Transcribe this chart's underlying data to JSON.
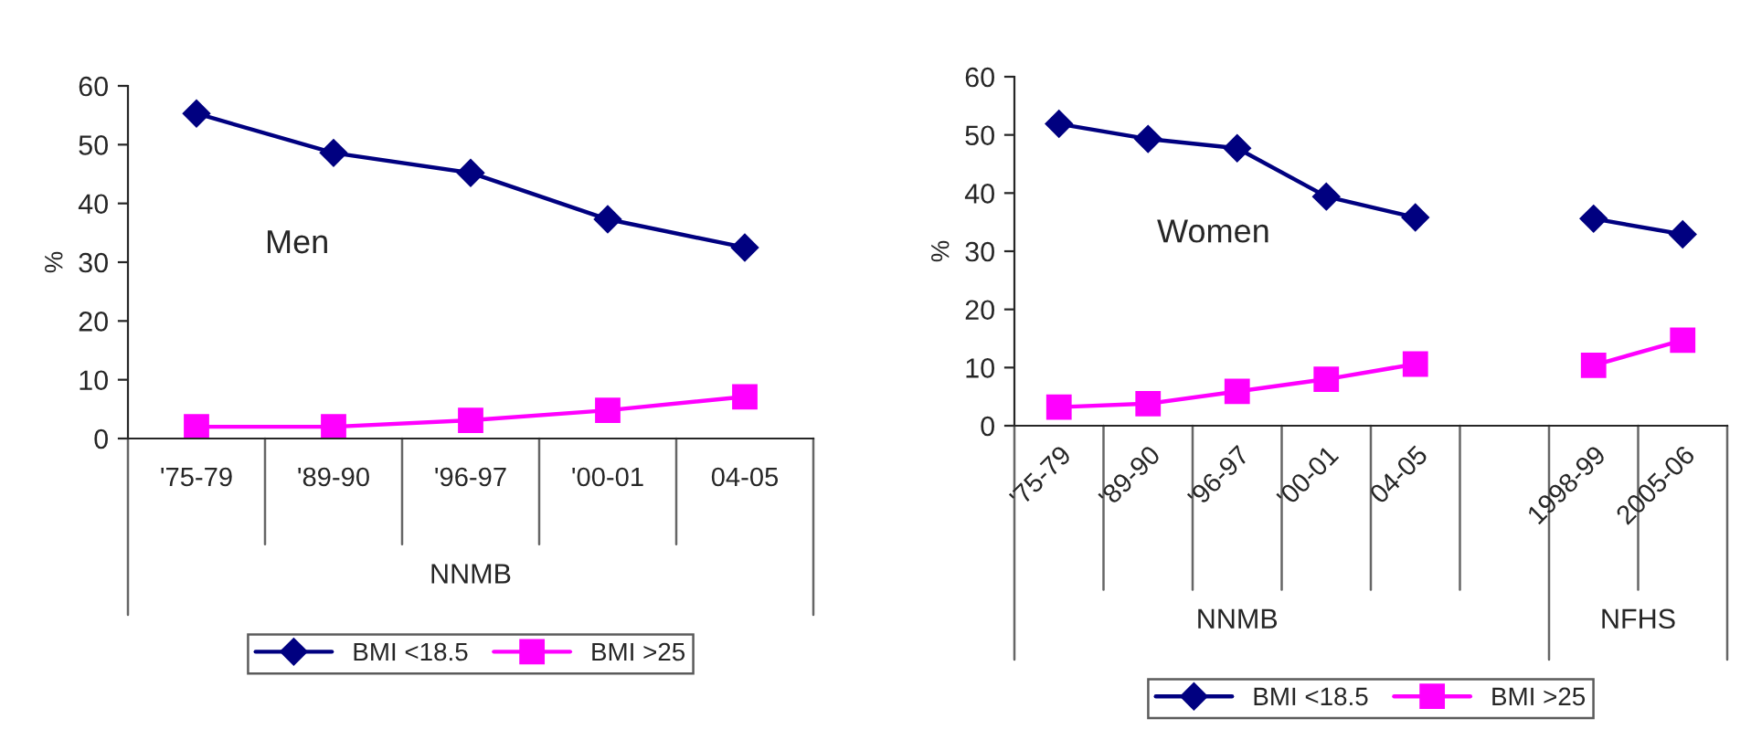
{
  "chart_data": [
    {
      "type": "line",
      "categories": [
        "'75-79",
        "'89-90",
        "'96-97",
        "'00-01",
        "04-05"
      ],
      "ylabel": "%",
      "ylim": [
        0,
        60
      ],
      "yticks": [
        0,
        10,
        20,
        30,
        40,
        50,
        60
      ],
      "grid": false,
      "legend": "bottom",
      "line_style": "solid",
      "annotations": [
        "Men",
        "NNMB"
      ],
      "series": [
        {
          "name": "BMI <18.5",
          "color": "#000080",
          "marker": "diamond",
          "values": [
            55.3,
            48.6,
            45.2,
            37.3,
            32.5
          ]
        },
        {
          "name": "BMI >25",
          "color": "#ff00ff",
          "marker": "square",
          "values": [
            2,
            2,
            3.1,
            4.8,
            7.1
          ]
        }
      ]
    },
    {
      "type": "line",
      "categories": [
        "'75-79",
        "'89-90",
        "'96-97",
        "'00-01",
        "04-05",
        null,
        "1998-99",
        "2005-06"
      ],
      "ylabel": "%",
      "ylim": [
        0,
        60
      ],
      "yticks": [
        0,
        10,
        20,
        30,
        40,
        50,
        60
      ],
      "grid": false,
      "legend": "bottom",
      "line_style": "solid",
      "annotations": [
        "Women",
        "NNMB",
        "NFHS"
      ],
      "series": [
        {
          "name": "BMI <18.5",
          "color": "#000080",
          "marker": "diamond",
          "values": [
            51.9,
            49.3,
            47.7,
            39.4,
            35.8,
            null,
            35.6,
            32.9
          ]
        },
        {
          "name": "BMI >25",
          "color": "#ff00ff",
          "marker": "square",
          "values": [
            3.2,
            3.8,
            5.9,
            8.0,
            10.6,
            null,
            10.4,
            14.7
          ]
        }
      ]
    }
  ]
}
